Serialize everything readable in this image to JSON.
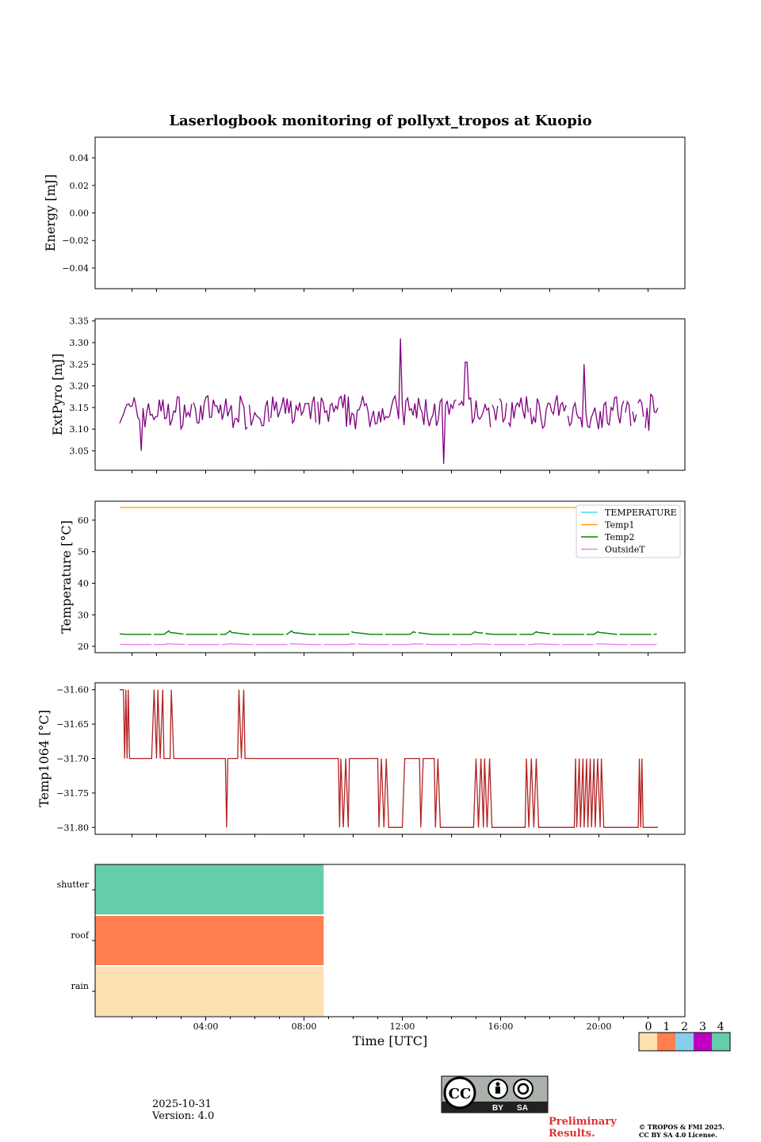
{
  "chart_data": {
    "title": "Laserlogbook monitoring of pollyxt_tropos at Kuopio",
    "xlabel": "Time [UTC]",
    "x_unit": "hours UTC",
    "xlim": [
      -0.5,
      23.5
    ],
    "x_ticklabels": [
      {
        "x": 4,
        "label": "04:00"
      },
      {
        "x": 8,
        "label": "08:00"
      },
      {
        "x": 12,
        "label": "12:00"
      },
      {
        "x": 16,
        "label": "16:00"
      },
      {
        "x": 20,
        "label": "20:00"
      }
    ],
    "panels": [
      {
        "id": "energy",
        "type": "line",
        "ylabel": "Energy [mJ]",
        "ylim": [
          -0.055,
          0.055
        ],
        "yticks": [
          0.04,
          0.02,
          0.0,
          -0.02,
          -0.04
        ],
        "ytick_labels": [
          "0.04",
          "0.02",
          "0.00",
          "−0.02",
          "−0.04"
        ],
        "series": []
      },
      {
        "id": "extpyro",
        "type": "line",
        "ylabel": "ExtPyro [mJ]",
        "ylim": [
          3.005,
          3.355
        ],
        "yticks": [
          3.35,
          3.3,
          3.25,
          3.2,
          3.15,
          3.1,
          3.05
        ],
        "ytick_labels": [
          "3.35",
          "3.30",
          "3.25",
          "3.20",
          "3.15",
          "3.10",
          "3.05"
        ],
        "series": [
          {
            "name": "ExtPyro",
            "color": "#800080",
            "x_start": 0.5,
            "x_end": 22.4,
            "n_points": 300,
            "mean": 3.14,
            "spread": 0.035,
            "peaks": [
              {
                "x": 11.9,
                "y": 3.31
              },
              {
                "x": 13.7,
                "y": 3.02
              },
              {
                "x": 14.6,
                "y": 3.255
              },
              {
                "x": 19.4,
                "y": 3.25
              },
              {
                "x": 1.4,
                "y": 3.05
              }
            ]
          }
        ]
      },
      {
        "id": "temperature",
        "type": "line",
        "ylabel": "Temperature [°C]",
        "ylim": [
          18,
          66
        ],
        "yticks": [
          60,
          50,
          40,
          30,
          20
        ],
        "ytick_labels": [
          "60",
          "50",
          "40",
          "30",
          "20"
        ],
        "legend_position": "top-right",
        "series": [
          {
            "name": "TEMPERATURE",
            "color": "#40e0e0",
            "baseline": null
          },
          {
            "name": "Temp1",
            "color": "#ffa500",
            "baseline": 64
          },
          {
            "name": "Temp2",
            "color": "#008000",
            "baseline": 23.8,
            "bump_height": 1.1,
            "bump_period_hours": 2.5
          },
          {
            "name": "OutsideT",
            "color": "#ee82ee",
            "baseline": 20.6,
            "bump_height": 0.3,
            "bump_period_hours": 2.5
          }
        ]
      },
      {
        "id": "temp1064",
        "type": "step",
        "ylabel": "Temp1064 [°C]",
        "ylim": [
          -31.81,
          -31.59
        ],
        "yticks": [
          -31.6,
          -31.65,
          -31.7,
          -31.75,
          -31.8
        ],
        "ytick_labels": [
          "−31.60",
          "−31.65",
          "−31.70",
          "−31.75",
          "−31.80"
        ],
        "series": [
          {
            "name": "Temp1064",
            "color": "#b22222",
            "points": [
              [
                0.5,
                -31.6
              ],
              [
                0.65,
                -31.6
              ],
              [
                0.7,
                -31.7
              ],
              [
                0.75,
                -31.6
              ],
              [
                0.8,
                -31.7
              ],
              [
                0.85,
                -31.6
              ],
              [
                0.9,
                -31.7
              ],
              [
                1.8,
                -31.7
              ],
              [
                1.9,
                -31.6
              ],
              [
                2.0,
                -31.7
              ],
              [
                2.05,
                -31.6
              ],
              [
                2.15,
                -31.7
              ],
              [
                2.25,
                -31.6
              ],
              [
                2.3,
                -31.7
              ],
              [
                2.55,
                -31.7
              ],
              [
                2.6,
                -31.6
              ],
              [
                2.7,
                -31.7
              ],
              [
                4.8,
                -31.7
              ],
              [
                4.85,
                -31.8
              ],
              [
                4.9,
                -31.7
              ],
              [
                5.3,
                -31.7
              ],
              [
                5.35,
                -31.6
              ],
              [
                5.45,
                -31.7
              ],
              [
                5.55,
                -31.6
              ],
              [
                5.6,
                -31.7
              ],
              [
                9.4,
                -31.7
              ],
              [
                9.45,
                -31.8
              ],
              [
                9.5,
                -31.7
              ],
              [
                9.6,
                -31.8
              ],
              [
                9.7,
                -31.7
              ],
              [
                9.8,
                -31.8
              ],
              [
                9.85,
                -31.7
              ],
              [
                11.0,
                -31.7
              ],
              [
                11.05,
                -31.8
              ],
              [
                11.15,
                -31.7
              ],
              [
                11.25,
                -31.8
              ],
              [
                11.35,
                -31.7
              ],
              [
                11.45,
                -31.8
              ],
              [
                12.0,
                -31.8
              ],
              [
                12.1,
                -31.7
              ],
              [
                12.7,
                -31.7
              ],
              [
                12.75,
                -31.8
              ],
              [
                12.85,
                -31.7
              ],
              [
                13.3,
                -31.7
              ],
              [
                13.35,
                -31.8
              ],
              [
                13.45,
                -31.7
              ],
              [
                13.55,
                -31.8
              ],
              [
                14.9,
                -31.8
              ],
              [
                15.0,
                -31.7
              ],
              [
                15.1,
                -31.8
              ],
              [
                15.2,
                -31.7
              ],
              [
                15.3,
                -31.8
              ],
              [
                15.35,
                -31.7
              ],
              [
                15.45,
                -31.8
              ],
              [
                15.55,
                -31.7
              ],
              [
                15.65,
                -31.8
              ],
              [
                17.0,
                -31.8
              ],
              [
                17.05,
                -31.7
              ],
              [
                17.15,
                -31.8
              ],
              [
                17.25,
                -31.7
              ],
              [
                17.35,
                -31.8
              ],
              [
                17.45,
                -31.7
              ],
              [
                17.55,
                -31.8
              ],
              [
                19.0,
                -31.8
              ],
              [
                19.05,
                -31.7
              ],
              [
                19.1,
                -31.8
              ],
              [
                19.2,
                -31.7
              ],
              [
                19.25,
                -31.8
              ],
              [
                19.35,
                -31.7
              ],
              [
                19.4,
                -31.8
              ],
              [
                19.5,
                -31.7
              ],
              [
                19.55,
                -31.8
              ],
              [
                19.65,
                -31.7
              ],
              [
                19.7,
                -31.8
              ],
              [
                19.8,
                -31.7
              ],
              [
                19.85,
                -31.8
              ],
              [
                19.95,
                -31.7
              ],
              [
                20.05,
                -31.8
              ],
              [
                20.1,
                -31.7
              ],
              [
                20.2,
                -31.8
              ],
              [
                21.6,
                -31.8
              ],
              [
                21.65,
                -31.7
              ],
              [
                21.7,
                -31.8
              ],
              [
                21.75,
                -31.7
              ],
              [
                21.8,
                -31.8
              ],
              [
                22.4,
                -31.8
              ]
            ]
          }
        ]
      },
      {
        "id": "status",
        "type": "heatmap",
        "categories": [
          "rain",
          "roof",
          "shutter"
        ],
        "x_end": 8.8,
        "levels": {
          "rain": 0,
          "roof": 1,
          "shutter": 4
        }
      }
    ],
    "colorbar": {
      "ticks": [
        "0",
        "1",
        "2",
        "3",
        "4"
      ],
      "colors": [
        "#fde0b0",
        "#ff7f50",
        "#87ceeb",
        "#c000c0",
        "#66cdaa"
      ]
    }
  },
  "footer": {
    "date": "2025-10-31",
    "version": "Version: 4.0",
    "prelim_line1": "Preliminary",
    "prelim_line2": "Results.",
    "copyright_line1": "© TROPOS & FMI 2025.",
    "copyright_line2": "CC BY SA 4.0 License.",
    "cc_badge": "CC",
    "cc_by": "BY",
    "cc_sa": "SA"
  }
}
